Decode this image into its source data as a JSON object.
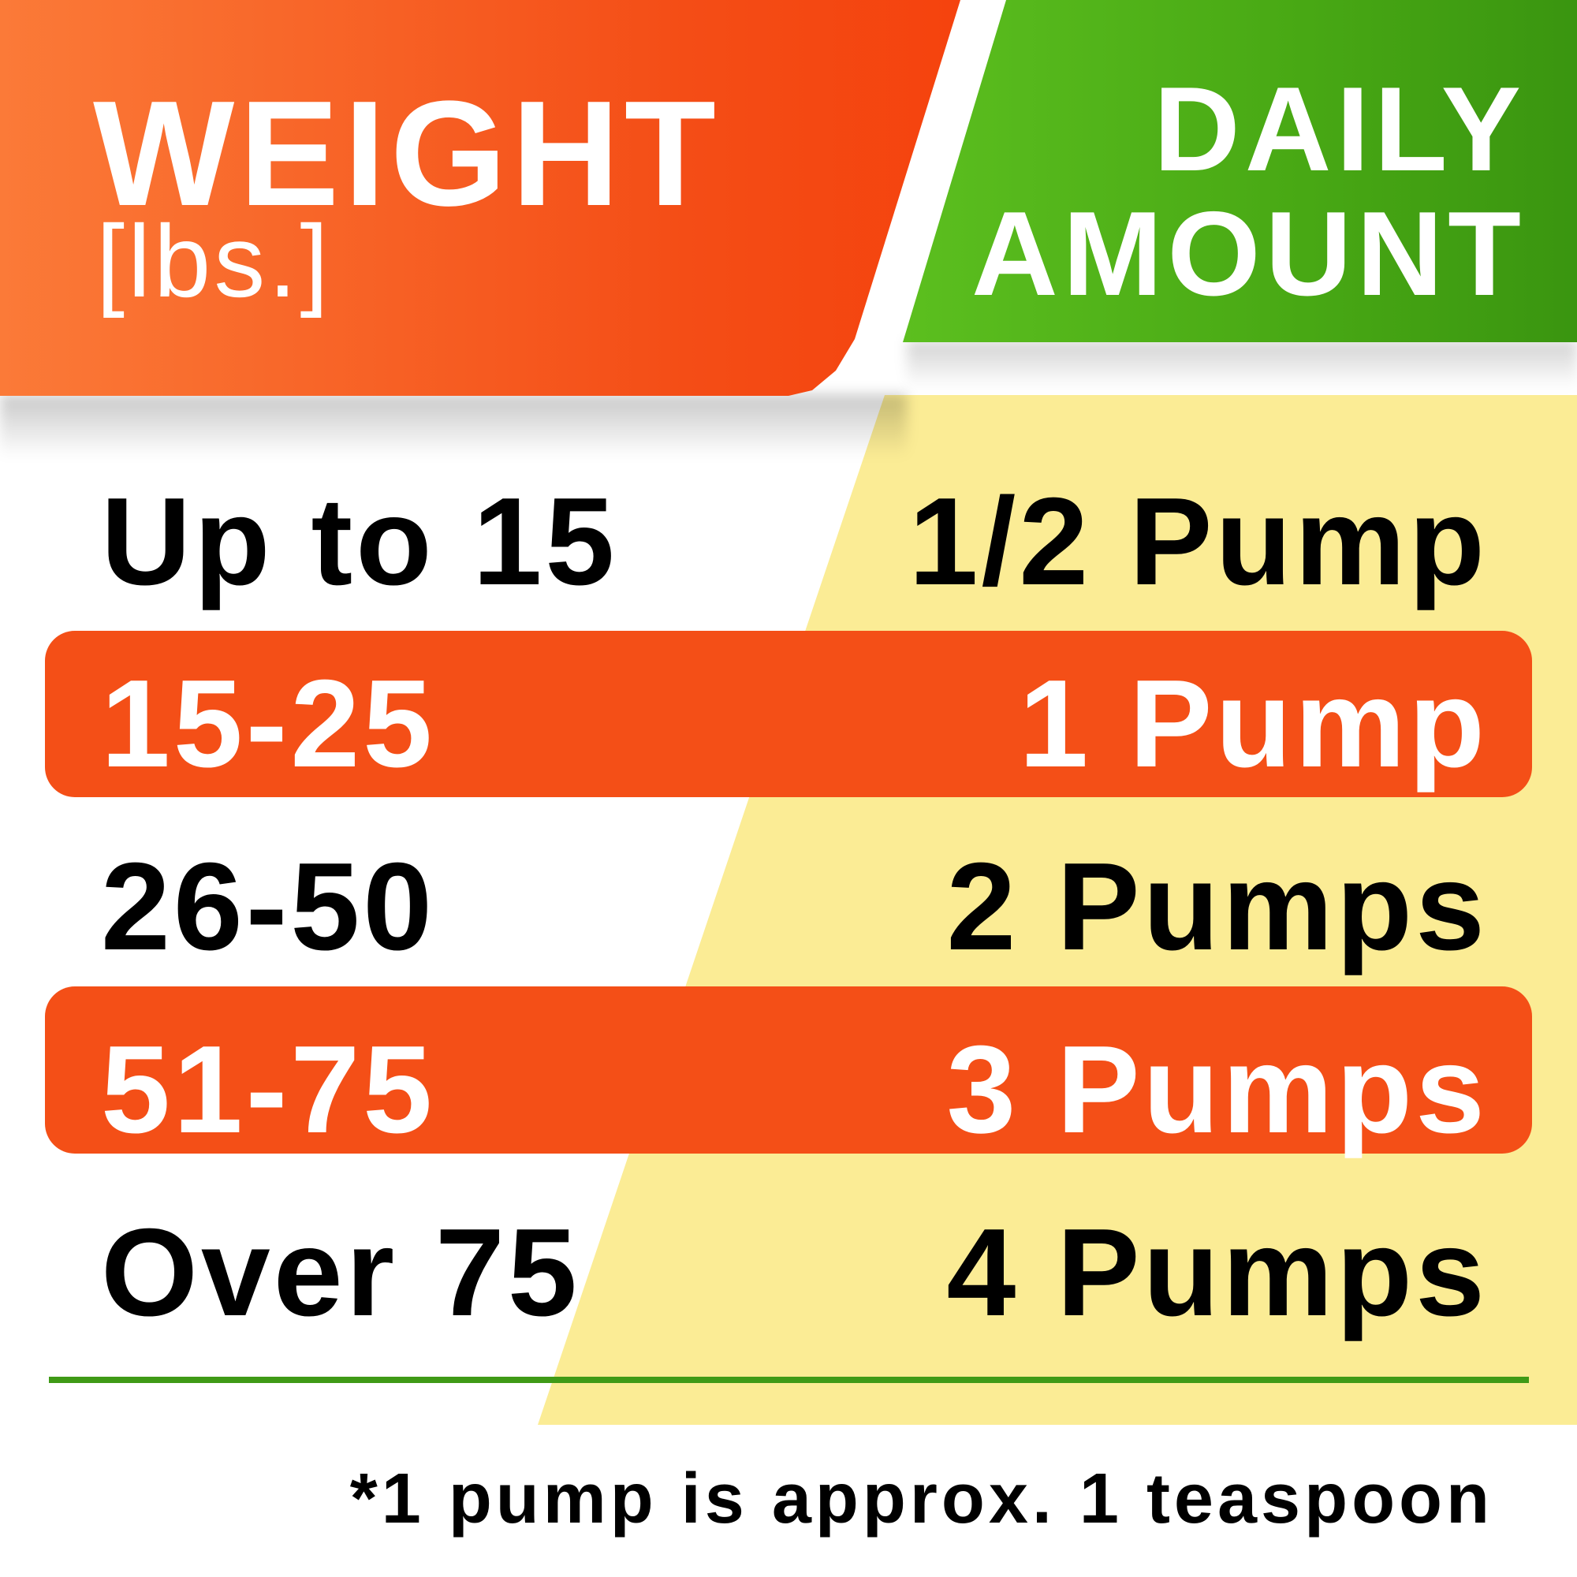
{
  "header": {
    "weight_title": "WEIGHT",
    "weight_unit": "[lbs.]",
    "amount_title_line1": "DAILY",
    "amount_title_line2": "AMOUNT"
  },
  "rows": [
    {
      "weight": "Up to 15",
      "amount": "1/2 Pump",
      "highlighted": false
    },
    {
      "weight": "15-25",
      "amount": "1 Pump",
      "highlighted": true
    },
    {
      "weight": "26-50",
      "amount": "2 Pumps",
      "highlighted": false
    },
    {
      "weight": "51-75",
      "amount": "3 Pumps",
      "highlighted": true
    },
    {
      "weight": "Over 75",
      "amount": "4 Pumps",
      "highlighted": false
    }
  ],
  "footnote": "*1 pump is approx. 1 teaspoon",
  "colors": {
    "orange": "#f44f17",
    "green": "#48a814",
    "yellow": "#fbec95",
    "rule": "#3f9a16"
  }
}
